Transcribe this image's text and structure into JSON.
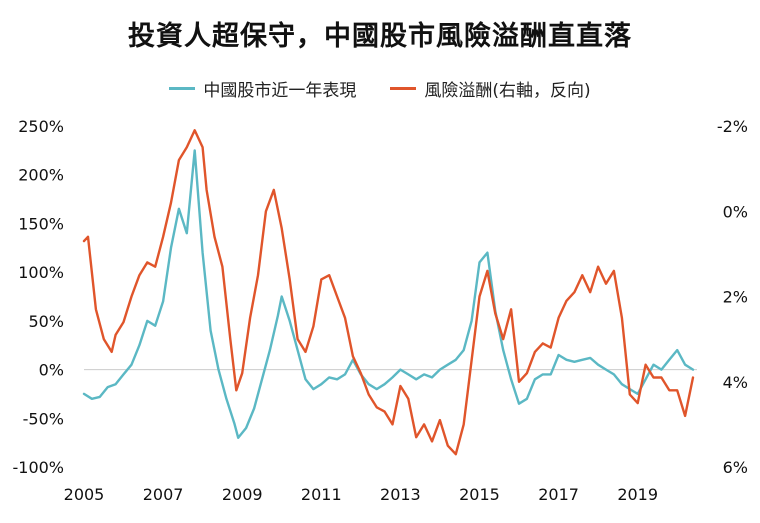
{
  "chart_data": {
    "type": "line",
    "title": "投資人超保守，中國股市風險溢酬直直落",
    "colors": {
      "china_stock": "#5bb8c4",
      "risk_premium": "#e0552b",
      "zero_line": "#cccccc"
    },
    "x_ticks": [
      "2005",
      "2007",
      "2009",
      "2011",
      "2013",
      "2015",
      "2017",
      "2019"
    ],
    "xlim": [
      2005,
      2020.5
    ],
    "left_axis": {
      "ylim": [
        -100,
        250
      ],
      "ticks": [
        -100,
        -50,
        0,
        50,
        100,
        150,
        200,
        250
      ],
      "tick_labels": [
        "-100%",
        "-50%",
        "0%",
        "50%",
        "100%",
        "150%",
        "200%",
        "250%"
      ]
    },
    "right_axis": {
      "inverted": true,
      "ylim": [
        6,
        -2
      ],
      "ticks": [
        -2,
        0,
        2,
        4,
        6
      ],
      "tick_labels": [
        "-2%",
        "0%",
        "2%",
        "4%",
        "6%"
      ]
    },
    "series": [
      {
        "name": "中國股市近一年表現",
        "axis": "left",
        "x": [
          2005.0,
          2005.2,
          2005.4,
          2005.6,
          2005.8,
          2006.0,
          2006.2,
          2006.4,
          2006.6,
          2006.8,
          2007.0,
          2007.2,
          2007.4,
          2007.6,
          2007.8,
          2008.0,
          2008.2,
          2008.4,
          2008.6,
          2008.8,
          2008.9,
          2009.1,
          2009.3,
          2009.5,
          2009.7,
          2009.9,
          2010.0,
          2010.2,
          2010.4,
          2010.6,
          2010.8,
          2011.0,
          2011.2,
          2011.4,
          2011.6,
          2011.8,
          2012.0,
          2012.2,
          2012.4,
          2012.6,
          2012.8,
          2013.0,
          2013.2,
          2013.4,
          2013.6,
          2013.8,
          2014.0,
          2014.2,
          2014.4,
          2014.6,
          2014.8,
          2015.0,
          2015.2,
          2015.4,
          2015.6,
          2015.8,
          2016.0,
          2016.2,
          2016.4,
          2016.6,
          2016.8,
          2017.0,
          2017.2,
          2017.4,
          2017.6,
          2017.8,
          2018.0,
          2018.2,
          2018.4,
          2018.6,
          2018.8,
          2019.0,
          2019.2,
          2019.4,
          2019.6,
          2019.8,
          2020.0,
          2020.2,
          2020.4
        ],
        "values": [
          -25,
          -30,
          -28,
          -18,
          -15,
          -5,
          5,
          25,
          50,
          45,
          70,
          125,
          165,
          140,
          225,
          120,
          40,
          0,
          -30,
          -55,
          -70,
          -60,
          -40,
          -10,
          20,
          55,
          75,
          50,
          20,
          -10,
          -20,
          -15,
          -8,
          -10,
          -5,
          10,
          -5,
          -15,
          -20,
          -15,
          -8,
          0,
          -5,
          -10,
          -5,
          -8,
          0,
          5,
          10,
          20,
          50,
          110,
          120,
          60,
          20,
          -10,
          -35,
          -30,
          -10,
          -5,
          -5,
          15,
          10,
          8,
          10,
          12,
          5,
          0,
          -5,
          -15,
          -20,
          -25,
          -10,
          5,
          0,
          10,
          20,
          5,
          0
        ]
      },
      {
        "name": "風險溢酬(右軸，反向)",
        "axis": "right",
        "x": [
          2005.0,
          2005.1,
          2005.3,
          2005.5,
          2005.7,
          2005.8,
          2006.0,
          2006.2,
          2006.4,
          2006.6,
          2006.8,
          2007.0,
          2007.2,
          2007.4,
          2007.6,
          2007.8,
          2008.0,
          2008.1,
          2008.3,
          2008.5,
          2008.7,
          2008.85,
          2009.0,
          2009.2,
          2009.4,
          2009.6,
          2009.8,
          2010.0,
          2010.2,
          2010.4,
          2010.6,
          2010.8,
          2011.0,
          2011.2,
          2011.4,
          2011.6,
          2011.8,
          2012.0,
          2012.2,
          2012.4,
          2012.6,
          2012.8,
          2013.0,
          2013.2,
          2013.4,
          2013.6,
          2013.8,
          2014.0,
          2014.2,
          2014.4,
          2014.6,
          2014.8,
          2015.0,
          2015.2,
          2015.4,
          2015.6,
          2015.8,
          2016.0,
          2016.2,
          2016.4,
          2016.6,
          2016.8,
          2017.0,
          2017.2,
          2017.4,
          2017.6,
          2017.8,
          2018.0,
          2018.2,
          2018.4,
          2018.6,
          2018.8,
          2019.0,
          2019.2,
          2019.4,
          2019.6,
          2019.8,
          2020.0,
          2020.2,
          2020.4
        ],
        "values": [
          0.7,
          0.6,
          2.3,
          3.0,
          3.3,
          2.9,
          2.6,
          2.0,
          1.5,
          1.2,
          1.3,
          0.6,
          -0.2,
          -1.2,
          -1.5,
          -1.9,
          -1.5,
          -0.5,
          0.6,
          1.3,
          3.0,
          4.2,
          3.8,
          2.5,
          1.5,
          0.0,
          -0.5,
          0.4,
          1.6,
          3.0,
          3.3,
          2.7,
          1.6,
          1.5,
          2.0,
          2.5,
          3.4,
          3.8,
          4.3,
          4.6,
          4.7,
          5.0,
          4.1,
          4.4,
          5.3,
          5.0,
          5.4,
          4.9,
          5.5,
          5.7,
          5.0,
          3.5,
          2.0,
          1.4,
          2.4,
          3.0,
          2.3,
          4.0,
          3.8,
          3.3,
          3.1,
          3.2,
          2.5,
          2.1,
          1.9,
          1.5,
          1.9,
          1.3,
          1.7,
          1.4,
          2.5,
          4.3,
          4.5,
          3.6,
          3.9,
          3.9,
          4.2,
          4.2,
          4.8,
          3.9
        ]
      }
    ]
  }
}
